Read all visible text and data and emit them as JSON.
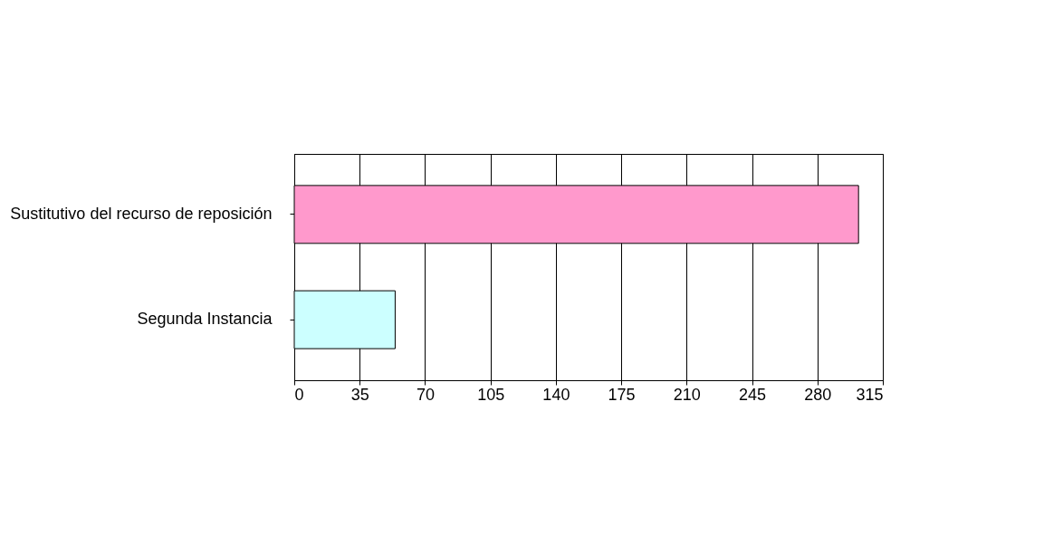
{
  "chart_data": {
    "type": "bar",
    "orientation": "horizontal",
    "categories": [
      "Sustitutivo del recurso de reposición",
      "Segunda Instancia"
    ],
    "values": [
      302,
      54
    ],
    "colors": [
      "#ff99cc",
      "#ccffff"
    ],
    "xlim": [
      0,
      315
    ],
    "xticks": [
      0,
      35,
      70,
      105,
      140,
      175,
      210,
      245,
      280,
      315
    ],
    "grid": "x"
  }
}
